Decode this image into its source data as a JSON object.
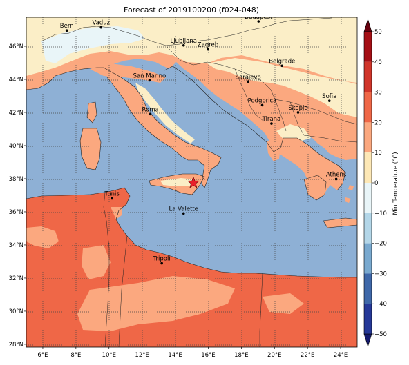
{
  "title": "Forecast of 2019100200 (f024-048)",
  "colorbar": {
    "label": "Min Temperature (°C)",
    "ticks": [
      "50",
      "40",
      "30",
      "20",
      "10",
      "0",
      "−10",
      "−20",
      "−30",
      "−40",
      "−50"
    ],
    "colors": [
      "#67000d",
      "#a50f15",
      "#d0352a",
      "#ef6747",
      "#fba87f",
      "#fde8b6",
      "#e9f5f8",
      "#b3d6e8",
      "#79a9cf",
      "#3f68a9",
      "#253898",
      "#141a6e"
    ]
  },
  "axes": {
    "x_ticks": [
      "6°E",
      "8°E",
      "10°E",
      "12°E",
      "14°E",
      "16°E",
      "18°E",
      "20°E",
      "22°E",
      "24°E"
    ],
    "y_ticks": [
      "46°N",
      "44°N",
      "42°N",
      "40°N",
      "38°N",
      "36°N",
      "34°N",
      "32°N",
      "30°N",
      "28°N"
    ]
  },
  "colors": {
    "sea": "#8eb0d5",
    "band_5_10": "#fbeec7",
    "band_10_20": "#fba87f",
    "band_20_30": "#ef6747",
    "band_m5_5": "#e9f5f8",
    "star": "#e8202a"
  },
  "cities": [
    {
      "name": "Bern",
      "lon": 7.45,
      "lat": 46.95
    },
    {
      "name": "Vaduz",
      "lon": 9.52,
      "lat": 47.14
    },
    {
      "name": "Budapest",
      "lon": 19.04,
      "lat": 47.5
    },
    {
      "name": "Ljubljana",
      "lon": 14.51,
      "lat": 46.05
    },
    {
      "name": "Zagreb",
      "lon": 15.98,
      "lat": 45.81
    },
    {
      "name": "Belgrade",
      "lon": 20.46,
      "lat": 44.82
    },
    {
      "name": "San Marino",
      "lon": 12.45,
      "lat": 43.94
    },
    {
      "name": "Sarajevo",
      "lon": 18.41,
      "lat": 43.86
    },
    {
      "name": "Sofia",
      "lon": 23.32,
      "lat": 42.7
    },
    {
      "name": "Podgorica",
      "lon": 19.26,
      "lat": 42.44
    },
    {
      "name": "Skopje",
      "lon": 21.43,
      "lat": 42.0
    },
    {
      "name": "Roma",
      "lon": 12.5,
      "lat": 41.9
    },
    {
      "name": "Tirana",
      "lon": 19.82,
      "lat": 41.33
    },
    {
      "name": "Athens",
      "lon": 23.73,
      "lat": 37.98
    },
    {
      "name": "Tunis",
      "lon": 10.18,
      "lat": 36.81
    },
    {
      "name": "La Valette",
      "lon": 14.51,
      "lat": 35.9
    },
    {
      "name": "Tripoli",
      "lon": 13.19,
      "lat": 32.89
    }
  ],
  "marker": {
    "symbol": "star",
    "lon": 15.1,
    "lat": 37.75
  }
}
